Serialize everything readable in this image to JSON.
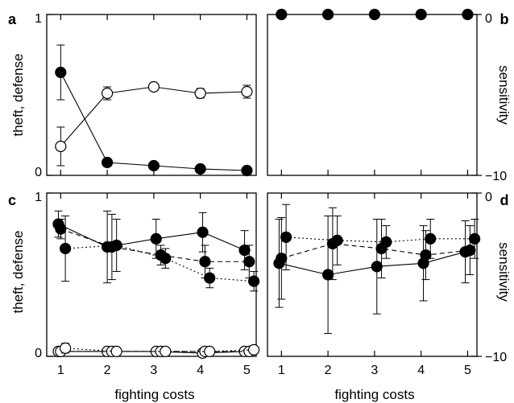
{
  "figure": {
    "x_axis_label": "fighting costs",
    "left_axis_label": "theft, defense",
    "right_axis_label": "sensitivity"
  },
  "chart_data": [
    {
      "panel": "a",
      "type": "line",
      "x": [
        1,
        2,
        3,
        4,
        5
      ],
      "xlim": [
        0.7,
        5.2
      ],
      "ylim": [
        0,
        1
      ],
      "yticks": [
        0,
        1
      ],
      "xticks": [],
      "series": [
        {
          "marker": "filled",
          "line": "solid",
          "values": [
            0.64,
            0.08,
            0.06,
            0.04,
            0.03
          ],
          "err": [
            0.17,
            0.01,
            0.01,
            0.01,
            0.01
          ]
        },
        {
          "marker": "open",
          "line": "solid",
          "values": [
            0.18,
            0.51,
            0.55,
            0.51,
            0.52
          ],
          "err": [
            0.12,
            0.04,
            0.02,
            0.03,
            0.04
          ]
        }
      ]
    },
    {
      "panel": "b",
      "type": "line",
      "x": [
        1,
        2,
        3,
        4,
        5
      ],
      "xlim": [
        0.7,
        5.2
      ],
      "ylim": [
        -10,
        0
      ],
      "yticks": [
        0,
        -10
      ],
      "xticks": [],
      "series": [
        {
          "marker": "filled",
          "line": "solid",
          "values": [
            0,
            0,
            0,
            0,
            0
          ],
          "err": [
            0,
            0,
            0,
            0,
            0
          ]
        }
      ]
    },
    {
      "panel": "c",
      "type": "line",
      "x": [
        1,
        2,
        3,
        4,
        5
      ],
      "xlim": [
        0.7,
        5.2
      ],
      "ylim": [
        0,
        1
      ],
      "yticks": [
        0,
        1
      ],
      "xticks": [
        1,
        2,
        3,
        4,
        5
      ],
      "series": [
        {
          "marker": "filled",
          "line": "solid",
          "x": [
            0.95,
            2.0,
            3.05,
            4.05,
            4.95
          ],
          "values": [
            0.81,
            0.67,
            0.72,
            0.76,
            0.65
          ],
          "err": [
            0.08,
            0.22,
            0.12,
            0.12,
            0.12
          ]
        },
        {
          "marker": "filled",
          "line": "dashed",
          "x": [
            1.0,
            2.1,
            3.15,
            4.1,
            5.05
          ],
          "values": [
            0.78,
            0.67,
            0.62,
            0.58,
            0.58
          ],
          "err": [
            0.06,
            0.2,
            0.06,
            0.1,
            0.1
          ]
        },
        {
          "marker": "filled",
          "line": "dotted",
          "x": [
            1.1,
            2.2,
            3.25,
            4.2,
            5.15
          ],
          "values": [
            0.66,
            0.68,
            0.6,
            0.48,
            0.46
          ],
          "err": [
            0.2,
            0.16,
            0.06,
            0.06,
            0.06
          ]
        },
        {
          "marker": "open",
          "line": "solid",
          "x": [
            0.95,
            2.0,
            3.05,
            4.05,
            4.95
          ],
          "values": [
            0.03,
            0.03,
            0.03,
            0.02,
            0.03
          ],
          "err": [
            0.01,
            0.01,
            0.01,
            0.01,
            0.01
          ]
        },
        {
          "marker": "open",
          "line": "dashed",
          "x": [
            1.0,
            2.1,
            3.15,
            4.1,
            5.05
          ],
          "values": [
            0.03,
            0.03,
            0.03,
            0.03,
            0.03
          ],
          "err": [
            0.01,
            0.01,
            0.01,
            0.01,
            0.01
          ]
        },
        {
          "marker": "open",
          "line": "dotted",
          "x": [
            1.1,
            2.2,
            3.25,
            4.2,
            5.15
          ],
          "values": [
            0.05,
            0.03,
            0.03,
            0.03,
            0.04
          ],
          "err": [
            0.03,
            0.01,
            0.01,
            0.02,
            0.02
          ]
        }
      ]
    },
    {
      "panel": "d",
      "type": "line",
      "x": [
        1,
        2,
        3,
        4,
        5
      ],
      "xlim": [
        0.7,
        5.2
      ],
      "ylim": [
        -10,
        0
      ],
      "yticks": [
        0,
        -10
      ],
      "xticks": [
        1,
        2,
        3,
        4,
        5
      ],
      "series": [
        {
          "marker": "filled",
          "line": "solid",
          "x": [
            0.95,
            2.0,
            3.05,
            4.05,
            4.95
          ],
          "values": [
            -4.3,
            -5.0,
            -4.5,
            -4.3,
            -3.6
          ],
          "err": [
            2.7,
            3.6,
            2.9,
            2.3,
            1.9
          ]
        },
        {
          "marker": "filled",
          "line": "dashed",
          "x": [
            1.0,
            2.1,
            3.15,
            4.1,
            5.05
          ],
          "values": [
            -4.0,
            -3.1,
            -3.4,
            -3.8,
            -3.5
          ],
          "err": [
            2.5,
            2.2,
            1.8,
            1.5,
            1.5
          ]
        },
        {
          "marker": "filled",
          "line": "dotted",
          "x": [
            1.1,
            2.2,
            3.25,
            4.2,
            5.15
          ],
          "values": [
            -2.7,
            -2.9,
            -3.0,
            -2.8,
            -2.8
          ],
          "err": [
            2.0,
            1.5,
            1.0,
            1.2,
            1.2
          ]
        }
      ]
    }
  ]
}
